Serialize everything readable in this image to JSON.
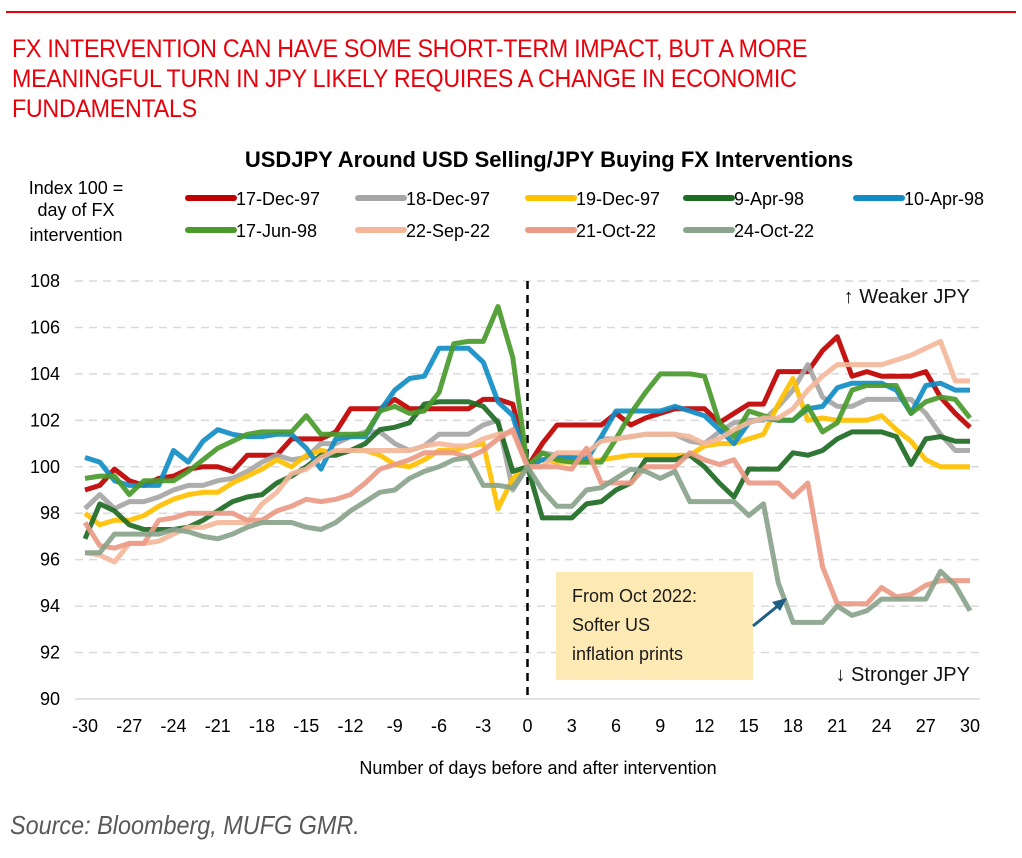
{
  "headline": "FX INTERVENTION CAN HAVE SOME SHORT-TERM IMPACT, BUT A MORE MEANINGFUL TURN IN JPY LIKELY REQUIRES A CHANGE IN ECONOMIC FUNDAMENTALS",
  "source": "Source: Bloomberg, MUFG GMR.",
  "chart_data": {
    "type": "line",
    "title": "USDJPY Around USD Selling/JPY Buying FX Interventions",
    "ylabel_lines": [
      "Index 100 =",
      "day of FX",
      "intervention"
    ],
    "xlabel": "Number of days before and after intervention",
    "ylim": [
      90,
      108
    ],
    "yticks": [
      90,
      92,
      94,
      96,
      98,
      100,
      102,
      104,
      106,
      108
    ],
    "xlim": [
      -30,
      30
    ],
    "xticks": [
      -30,
      -27,
      -24,
      -21,
      -18,
      -15,
      -12,
      -9,
      -6,
      -3,
      0,
      3,
      6,
      9,
      12,
      15,
      18,
      21,
      24,
      27,
      30
    ],
    "grid": "horizontal dashed",
    "vertical_marker": {
      "x": 0,
      "style": "dashed",
      "color": "#000000"
    },
    "labels": {
      "weaker": "↑ Weaker JPY",
      "stronger": "↓ Stronger JPY"
    },
    "annotation": {
      "lines": [
        "From Oct 2022:",
        "Softer US",
        "inflation prints"
      ],
      "box_color": "#fde9b4",
      "arrow_color": "#1f5f85",
      "points_to": {
        "series": "24-Oct-22",
        "x": 17,
        "y": 94.5
      }
    },
    "legend_position": "top",
    "x": [
      -30,
      -29,
      -28,
      -27,
      -26,
      -25,
      -24,
      -23,
      -22,
      -21,
      -20,
      -19,
      -18,
      -17,
      -16,
      -15,
      -14,
      -13,
      -12,
      -11,
      -10,
      -9,
      -8,
      -7,
      -6,
      -5,
      -4,
      -3,
      -2,
      -1,
      0,
      1,
      2,
      3,
      4,
      5,
      6,
      7,
      8,
      9,
      10,
      11,
      12,
      13,
      14,
      15,
      16,
      17,
      18,
      19,
      20,
      21,
      22,
      23,
      24,
      25,
      26,
      27,
      28,
      29,
      30
    ],
    "series": [
      {
        "name": "17-Dec-97",
        "color": "#c00000",
        "values": [
          99.0,
          99.2,
          99.9,
          99.4,
          99.2,
          99.5,
          99.6,
          99.9,
          100.0,
          100.0,
          99.8,
          100.5,
          100.5,
          100.5,
          101.2,
          101.2,
          101.2,
          101.5,
          102.5,
          102.5,
          102.5,
          102.9,
          102.5,
          102.5,
          102.5,
          102.5,
          102.5,
          102.9,
          102.9,
          102.7,
          100.0,
          101.0,
          101.8,
          101.8,
          101.8,
          101.8,
          102.3,
          101.8,
          102.1,
          102.3,
          102.5,
          102.5,
          102.5,
          101.9,
          102.3,
          102.7,
          102.7,
          104.1,
          104.1,
          104.1,
          105.0,
          105.6,
          103.9,
          104.1,
          103.9,
          103.9,
          103.9,
          104.1,
          103.0,
          102.3,
          101.7
        ]
      },
      {
        "name": "18-Dec-97",
        "color": "#a6a6a6",
        "values": [
          98.2,
          98.8,
          98.2,
          98.5,
          98.5,
          98.7,
          99.0,
          99.2,
          99.2,
          99.4,
          99.5,
          99.8,
          100.2,
          100.5,
          100.3,
          100.4,
          101.0,
          101.0,
          101.3,
          101.5,
          101.5,
          101.0,
          100.7,
          100.9,
          101.4,
          101.4,
          101.4,
          101.8,
          102.0,
          99.0,
          100.0,
          100.6,
          100.5,
          100.4,
          100.5,
          101.2,
          101.2,
          101.3,
          101.4,
          101.4,
          101.4,
          101.1,
          101.0,
          101.5,
          101.9,
          102.0,
          102.0,
          102.6,
          103.3,
          104.4,
          103.0,
          102.6,
          102.6,
          102.9,
          102.9,
          102.9,
          102.9,
          102.3,
          101.4,
          100.7,
          100.7
        ]
      },
      {
        "name": "19-Dec-97",
        "color": "#ffc000",
        "values": [
          98.0,
          97.5,
          97.7,
          97.7,
          97.9,
          98.3,
          98.6,
          98.8,
          98.9,
          98.9,
          99.3,
          99.6,
          99.9,
          100.3,
          100.0,
          100.5,
          100.7,
          100.6,
          100.7,
          100.7,
          100.5,
          100.1,
          100.0,
          100.3,
          100.7,
          100.7,
          100.9,
          101.0,
          98.2,
          99.5,
          100.0,
          100.3,
          100.2,
          100.2,
          100.2,
          100.3,
          100.4,
          100.5,
          100.5,
          100.5,
          100.5,
          100.5,
          100.9,
          101.0,
          101.0,
          101.2,
          101.4,
          102.7,
          103.8,
          102.0,
          102.1,
          102.0,
          102.0,
          102.0,
          102.2,
          101.6,
          101.1,
          100.3,
          100.0,
          100.0,
          100.0
        ]
      },
      {
        "name": "9-Apr-98",
        "color": "#1e6b24",
        "values": [
          96.9,
          98.4,
          98.1,
          97.5,
          97.3,
          97.3,
          97.3,
          97.4,
          97.7,
          98.1,
          98.5,
          98.7,
          98.8,
          99.3,
          99.6,
          100.0,
          100.5,
          100.5,
          100.7,
          101.0,
          101.6,
          101.7,
          101.9,
          102.7,
          102.8,
          102.8,
          102.8,
          102.6,
          101.9,
          99.8,
          100.0,
          97.8,
          97.8,
          97.8,
          98.4,
          98.5,
          99.0,
          99.3,
          100.3,
          100.3,
          100.3,
          100.5,
          100.0,
          99.3,
          98.7,
          99.9,
          99.9,
          99.9,
          100.6,
          100.5,
          100.7,
          101.2,
          101.5,
          101.5,
          101.5,
          101.3,
          100.1,
          101.2,
          101.3,
          101.1,
          101.1
        ]
      },
      {
        "name": "10-Apr-98",
        "color": "#118dc6",
        "values": [
          100.4,
          100.2,
          99.4,
          99.2,
          99.2,
          99.2,
          100.7,
          100.2,
          101.1,
          101.6,
          101.4,
          101.3,
          101.3,
          101.4,
          101.4,
          100.8,
          99.9,
          101.2,
          101.3,
          101.3,
          102.4,
          103.3,
          103.8,
          103.9,
          105.1,
          105.1,
          105.1,
          104.5,
          102.8,
          102.2,
          100.0,
          100.3,
          100.4,
          100.4,
          100.3,
          101.3,
          102.4,
          102.4,
          102.4,
          102.4,
          102.6,
          102.4,
          102.2,
          101.6,
          101.0,
          101.9,
          102.1,
          102.0,
          102.0,
          102.5,
          102.6,
          103.4,
          103.6,
          103.6,
          103.6,
          103.3,
          102.3,
          103.5,
          103.6,
          103.3,
          103.3
        ]
      },
      {
        "name": "17-Jun-98",
        "color": "#4a9a2d",
        "values": [
          99.5,
          99.6,
          99.6,
          98.8,
          99.4,
          99.4,
          99.4,
          99.8,
          100.3,
          100.8,
          101.1,
          101.4,
          101.5,
          101.5,
          101.5,
          102.2,
          101.4,
          101.4,
          101.4,
          101.4,
          102.4,
          102.6,
          102.3,
          102.4,
          103.2,
          105.3,
          105.4,
          105.4,
          106.9,
          104.7,
          100.0,
          100.6,
          100.3,
          100.2,
          100.2,
          100.2,
          101.2,
          102.3,
          103.2,
          104.0,
          104.0,
          104.0,
          103.9,
          101.9,
          101.3,
          102.4,
          102.2,
          102.0,
          102.0,
          102.6,
          101.5,
          101.9,
          103.3,
          103.5,
          103.5,
          103.5,
          102.3,
          102.8,
          103.0,
          102.9,
          102.1
        ]
      },
      {
        "name": "22-Sep-22",
        "color": "#f4b79a",
        "values": [
          96.3,
          96.2,
          95.9,
          96.7,
          96.7,
          96.8,
          97.1,
          97.4,
          97.4,
          97.6,
          97.6,
          97.6,
          98.4,
          98.9,
          99.7,
          99.9,
          100.4,
          100.7,
          100.7,
          100.7,
          100.7,
          100.7,
          100.7,
          100.9,
          101.0,
          100.9,
          100.9,
          101.2,
          101.4,
          101.5,
          100.0,
          100.0,
          100.6,
          100.6,
          100.6,
          101.1,
          101.2,
          101.3,
          101.4,
          101.4,
          101.4,
          101.3,
          101.0,
          101.2,
          101.6,
          101.9,
          102.1,
          102.1,
          102.5,
          103.3,
          103.9,
          104.4,
          104.4,
          104.4,
          104.4,
          104.6,
          104.8,
          105.1,
          105.4,
          103.7,
          103.7
        ]
      },
      {
        "name": "21-Oct-22",
        "color": "#eb9a85",
        "values": [
          97.6,
          96.6,
          96.5,
          96.7,
          96.7,
          97.7,
          97.8,
          98.0,
          98.0,
          98.0,
          98.0,
          97.7,
          97.7,
          98.1,
          98.3,
          98.6,
          98.5,
          98.6,
          98.8,
          99.3,
          99.9,
          100.1,
          100.3,
          100.6,
          100.6,
          100.6,
          100.4,
          100.7,
          101.2,
          101.6,
          100.0,
          100.0,
          100.0,
          99.9,
          100.8,
          99.3,
          99.3,
          99.3,
          100.0,
          100.0,
          100.0,
          100.6,
          100.3,
          100.1,
          100.3,
          99.3,
          99.3,
          99.3,
          98.7,
          99.3,
          95.7,
          94.1,
          94.1,
          94.1,
          94.8,
          94.4,
          94.5,
          94.9,
          95.1,
          95.1,
          95.1
        ]
      },
      {
        "name": "24-Oct-22",
        "color": "#8aa38c",
        "values": [
          96.3,
          96.3,
          97.1,
          97.1,
          97.1,
          97.1,
          97.3,
          97.2,
          97.0,
          96.9,
          97.1,
          97.4,
          97.6,
          97.6,
          97.6,
          97.4,
          97.3,
          97.6,
          98.1,
          98.5,
          98.9,
          99.0,
          99.5,
          99.8,
          100.0,
          100.3,
          100.4,
          99.2,
          99.2,
          99.1,
          100.0,
          99.0,
          98.3,
          98.3,
          99.0,
          99.1,
          99.5,
          99.9,
          99.8,
          99.5,
          99.8,
          98.5,
          98.5,
          98.5,
          98.5,
          97.9,
          98.4,
          95.0,
          93.3,
          93.3,
          93.3,
          94.0,
          93.6,
          93.8,
          94.3,
          94.3,
          94.3,
          94.3,
          95.5,
          94.9,
          93.8
        ]
      }
    ]
  }
}
